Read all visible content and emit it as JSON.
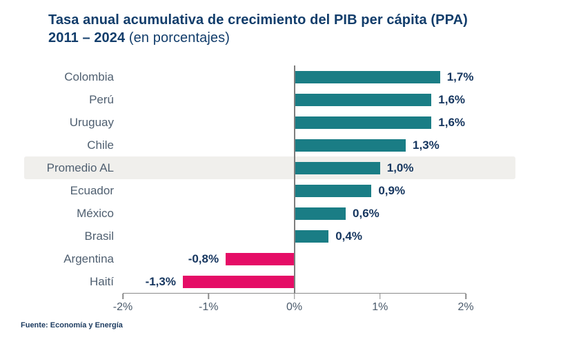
{
  "title": {
    "line1_bold": "Tasa anual acumulativa de crecimiento del PIB per cápita (PPA)",
    "line2_bold": "2011 – 2024",
    "line2_normal": "(en porcentajes)"
  },
  "source": "Fuente: Economía y Energía",
  "chart_data": {
    "type": "bar",
    "orientation": "horizontal",
    "title": "Tasa anual acumulativa de crecimiento del PIB per cápita (PPA) 2011 – 2024 (en porcentajes)",
    "categories": [
      "Colombia",
      "Perú",
      "Uruguay",
      "Chile",
      "Promedio AL",
      "Ecuador",
      "México",
      "Brasil",
      "Argentina",
      "Haití"
    ],
    "values": [
      1.7,
      1.6,
      1.6,
      1.3,
      1.0,
      0.9,
      0.6,
      0.4,
      -0.8,
      -1.3
    ],
    "value_labels": [
      "1,7%",
      "1,6%",
      "1,6%",
      "1,3%",
      "1,0%",
      "0,9%",
      "0,6%",
      "0,4%",
      "-0,8%",
      "-1,3%"
    ],
    "highlighted_category": "Promedio AL",
    "x_ticks": [
      "-2%",
      "-1%",
      "0%",
      "1%",
      "2%"
    ],
    "x_tick_values": [
      -2,
      -1,
      0,
      1,
      2
    ],
    "xlim": [
      -2,
      2
    ],
    "grid": false,
    "legend": "none",
    "colors": {
      "positive_bar": "#1a7d85",
      "negative_bar": "#e50d66",
      "value_label": "#16365f",
      "category_label": "#4f5f70",
      "title": "#123d6b",
      "highlight_band": "#f0efec",
      "axis_line": "#8a8a8a"
    }
  }
}
